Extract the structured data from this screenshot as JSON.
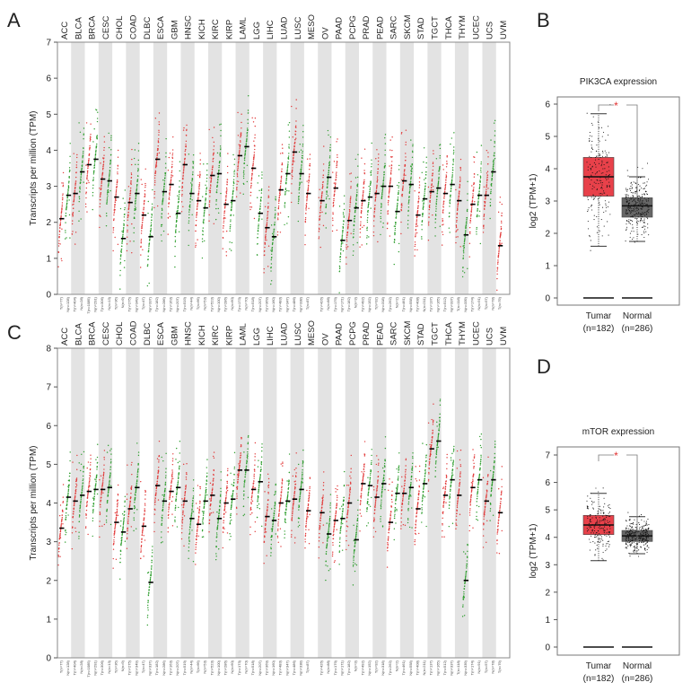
{
  "panels": {
    "A": "A",
    "B": "B",
    "C": "C",
    "D": "D"
  },
  "colors": {
    "tumor": "#e23b3b",
    "normal": "#2e9e2e",
    "band": "#e3e3e3",
    "box_tumor": "#e8414a",
    "box_normal": "#666666",
    "sig": "#e03030"
  },
  "chart_data": [
    {
      "id": "A",
      "type": "scatter",
      "title": "",
      "ylabel": "Transcripts per million (TPM)",
      "ylim": [
        0,
        7
      ],
      "yticks": [
        0,
        1,
        2,
        3,
        4,
        5,
        6,
        7
      ],
      "cancers": [
        "ACC",
        "BLCA",
        "BRCA",
        "CESC",
        "CHOL",
        "COAD",
        "DLBC",
        "ESCA",
        "GBM",
        "HNSC",
        "KICH",
        "KIRC",
        "KIRP",
        "LAML",
        "LGG",
        "LIHC",
        "LUAD",
        "LUSC",
        "MESO",
        "OV",
        "PAAD",
        "PCPG",
        "PRAD",
        "PEAD",
        "SARC",
        "SKCM",
        "STAD",
        "TGCT",
        "THCA",
        "THYM",
        "UCEC",
        "UCS",
        "UVM"
      ],
      "tumor_n": [
        77,
        404,
        1085,
        306,
        36,
        275,
        47,
        182,
        163,
        519,
        66,
        523,
        286,
        173,
        518,
        369,
        483,
        486,
        87,
        426,
        179,
        182,
        492,
        92,
        262,
        461,
        408,
        137,
        512,
        118,
        174,
        57,
        79
      ],
      "normal_n": [
        128,
        28,
        291,
        13,
        9,
        349,
        337,
        286,
        207,
        44,
        53,
        100,
        60,
        70,
        207,
        160,
        347,
        338,
        null,
        88,
        171,
        3,
        152,
        318,
        2,
        558,
        211,
        165,
        337,
        339,
        91,
        78,
        null
      ],
      "tumor_median": [
        2.1,
        2.8,
        3.6,
        3.2,
        2.7,
        2.55,
        2.2,
        3.75,
        3.05,
        3.6,
        2.6,
        3.3,
        2.5,
        3.85,
        3.5,
        1.85,
        2.9,
        3.95,
        2.8,
        2.6,
        2.95,
        2.05,
        2.6,
        2.8,
        3.0,
        3.15,
        2.2,
        2.85,
        2.8,
        2.6,
        2.5,
        2.75,
        1.35
      ],
      "normal_median": [
        2.75,
        3.4,
        3.75,
        3.15,
        1.55,
        2.8,
        1.6,
        2.85,
        2.25,
        2.8,
        2.4,
        3.35,
        2.6,
        4.1,
        2.25,
        1.6,
        3.35,
        3.35,
        null,
        3.25,
        1.5,
        2.4,
        2.7,
        3.0,
        2.3,
        3.05,
        2.65,
        2.95,
        3.05,
        1.65,
        2.75,
        3.4,
        null
      ],
      "tick_labels_tumor": [
        "T(n=77)",
        "T(n=404)",
        "T(n=1085)",
        "T(n=306)",
        "T(n=36)",
        "T(n=275)",
        "T(n=47)",
        "T(n=182)",
        "T(n=163)",
        "T(n=519)",
        "T(n=66)",
        "T(n=523)",
        "T(n=286)",
        "T(n=173)",
        "T(n=518)",
        "T(n=369)",
        "T(n=483)",
        "T(n=486)",
        "T(n=87)",
        "T(n=426)",
        "T(n=179)",
        "T(n=182)",
        "T(n=492)",
        "T(n=92)",
        "T(n=262)",
        "T(n=461)",
        "T(n=408)",
        "T(n=137)",
        "T(n=512)",
        "T(n=118)",
        "T(n=174)",
        "T(n=57)",
        "T(n=79)"
      ],
      "tick_labels_normal": [
        "N(n=128)",
        "N(n=28)",
        "N(n=291)",
        "N(n=13)",
        "N(n=9)",
        "N(n=349)",
        "N(n=337)",
        "N(n=286)",
        "N(n=207)",
        "N(n=44)",
        "N(n=53)",
        "N(n=100)",
        "N(n=60)",
        "N(n=70)",
        "N(n=207)",
        "N(n=160)",
        "N(n=347)",
        "N(n=338)",
        "",
        "N(n=88)",
        "N(n=171)",
        "N(n=3)",
        "N(n=152)",
        "N(n=318)",
        "N(n=2)",
        "N(n=558)",
        "N(n=211)",
        "N(n=165)",
        "N(n=337)",
        "N(n=339)",
        "N(n=91)",
        "N(n=78)",
        ""
      ]
    },
    {
      "id": "B",
      "type": "box",
      "title": "PIK3CA expression",
      "ylabel": "log2 (TPM+1)",
      "ylim": [
        0,
        6
      ],
      "yticks": [
        0,
        1,
        2,
        3,
        4,
        5,
        6
      ],
      "categories": [
        "Tumar",
        "Normal"
      ],
      "n_labels": [
        "(n=182)",
        "(n=286)"
      ],
      "boxes": [
        {
          "whisker_low": 1.6,
          "q1": 3.15,
          "median": 3.75,
          "q3": 4.35,
          "whisker_high": 5.7
        },
        {
          "whisker_low": 1.75,
          "q1": 2.5,
          "median": 2.85,
          "q3": 3.1,
          "whisker_high": 3.75
        }
      ],
      "significance": "*"
    },
    {
      "id": "C",
      "type": "scatter",
      "title": "",
      "ylabel": "Transcripts per million (TPM)",
      "ylim": [
        0,
        8
      ],
      "yticks": [
        0,
        1,
        2,
        3,
        4,
        5,
        6,
        7,
        8
      ],
      "cancers": [
        "ACC",
        "BLCA",
        "BRCA",
        "CESC",
        "CHOL",
        "COAD",
        "DLBC",
        "ESCA",
        "GBM",
        "HNSC",
        "KICH",
        "KIRC",
        "KIRP",
        "LAML",
        "LGG",
        "LIHC",
        "LUAD",
        "LUSC",
        "MESO",
        "OV",
        "PAAD",
        "PCPG",
        "PRAD",
        "PEAD",
        "SARC",
        "SKCM",
        "STAD",
        "TGCT",
        "THCA",
        "THYM",
        "UCEC",
        "UCS",
        "UVM"
      ],
      "tumor_median": [
        3.35,
        4.05,
        4.3,
        4.35,
        3.5,
        3.85,
        3.4,
        4.45,
        4.3,
        4.05,
        3.45,
        4.2,
        4.0,
        4.85,
        4.35,
        3.65,
        4.0,
        4.1,
        3.8,
        3.75,
        3.55,
        4.0,
        4.5,
        4.15,
        3.5,
        4.25,
        3.85,
        5.4,
        4.2,
        4.2,
        4.4,
        4.05,
        3.75
      ],
      "normal_median": [
        4.15,
        4.2,
        4.35,
        4.4,
        3.25,
        4.4,
        1.95,
        4.05,
        4.4,
        3.6,
        4.05,
        3.6,
        4.1,
        4.85,
        4.55,
        3.55,
        4.05,
        4.35,
        null,
        3.2,
        3.6,
        3.05,
        4.45,
        4.5,
        4.25,
        4.4,
        4.5,
        5.6,
        4.6,
        2.0,
        4.6,
        4.6,
        null
      ]
    },
    {
      "id": "D",
      "type": "box",
      "title": "mTOR expression",
      "ylabel": "log2 (TPM+1)",
      "ylim": [
        0,
        7
      ],
      "yticks": [
        0,
        1,
        2,
        3,
        4,
        5,
        6,
        7
      ],
      "categories": [
        "Tumar",
        "Normal"
      ],
      "n_labels": [
        "(n=182)",
        "(n=286)"
      ],
      "boxes": [
        {
          "whisker_low": 3.15,
          "q1": 4.1,
          "median": 4.45,
          "q3": 4.8,
          "whisker_high": 5.6
        },
        {
          "whisker_low": 3.4,
          "q1": 3.85,
          "median": 4.05,
          "q3": 4.25,
          "whisker_high": 4.75
        }
      ],
      "significance": "*"
    }
  ]
}
